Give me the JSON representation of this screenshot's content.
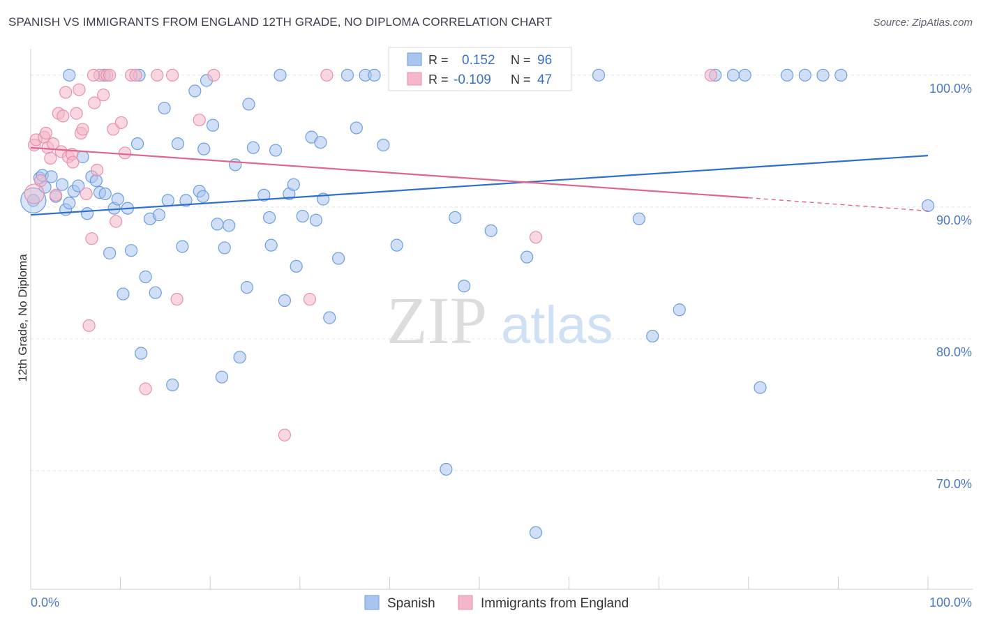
{
  "header": {
    "title": "SPANISH VS IMMIGRANTS FROM ENGLAND 12TH GRADE, NO DIPLOMA CORRELATION CHART",
    "source": "Source: ZipAtlas.com"
  },
  "watermark": {
    "zip": "ZIP",
    "atlas": "atlas"
  },
  "legend": {
    "rows": [
      {
        "r_label": "R =",
        "r_value": "0.152",
        "n_label": "N =",
        "n_value": "96",
        "color": "#a9c5ee"
      },
      {
        "r_label": "R =",
        "r_value": "-0.109",
        "n_label": "N =",
        "n_value": "47",
        "color": "#f4b7c9"
      }
    ]
  },
  "chart_data": {
    "type": "scatter",
    "title": "SPANISH VS IMMIGRANTS FROM ENGLAND 12TH GRADE, NO DIPLOMA CORRELATION CHART",
    "xlabel": "",
    "ylabel": "12th Grade, No Diploma",
    "xlim": [
      0,
      100
    ],
    "ylim": [
      61,
      102
    ],
    "x_tick_labels": [
      "0.0%",
      "100.0%"
    ],
    "y_ticks": [
      {
        "value": 70,
        "label": "70.0%"
      },
      {
        "value": 80,
        "label": "80.0%"
      },
      {
        "value": 90,
        "label": "90.0%"
      },
      {
        "value": 100,
        "label": "100.0%"
      }
    ],
    "grid": true,
    "legend_position": "top-center",
    "series": [
      {
        "name": "Spanish",
        "color": "#6a9ee0",
        "fill": "#a9c5ee",
        "trend": {
          "x": [
            0,
            100
          ],
          "y": [
            89.4,
            93.9
          ],
          "color": "#2f6fcc"
        },
        "points": [
          [
            0.3,
            90.5
          ],
          [
            1.0,
            92.2
          ],
          [
            1.3,
            92.4
          ],
          [
            1.6,
            91.5
          ],
          [
            2.3,
            92.3
          ],
          [
            2.8,
            90.8
          ],
          [
            3.5,
            91.7
          ],
          [
            3.9,
            89.8
          ],
          [
            4.3,
            90.3
          ],
          [
            4.8,
            91.2
          ],
          [
            5.3,
            91.6
          ],
          [
            5.8,
            93.8
          ],
          [
            6.3,
            89.5
          ],
          [
            6.8,
            92.3
          ],
          [
            7.3,
            92.0
          ],
          [
            7.7,
            91.1
          ],
          [
            8.3,
            91.0
          ],
          [
            8.8,
            86.5
          ],
          [
            9.3,
            89.9
          ],
          [
            9.7,
            90.6
          ],
          [
            10.3,
            83.4
          ],
          [
            10.8,
            89.9
          ],
          [
            11.2,
            86.7
          ],
          [
            11.9,
            94.8
          ],
          [
            12.3,
            78.9
          ],
          [
            12.8,
            84.7
          ],
          [
            13.3,
            89.1
          ],
          [
            13.9,
            83.5
          ],
          [
            14.3,
            89.4
          ],
          [
            14.9,
            97.5
          ],
          [
            15.3,
            90.5
          ],
          [
            15.8,
            76.5
          ],
          [
            16.4,
            94.8
          ],
          [
            16.9,
            87.0
          ],
          [
            17.3,
            90.5
          ],
          [
            18.3,
            98.8
          ],
          [
            18.8,
            91.2
          ],
          [
            19.2,
            90.8
          ],
          [
            19.3,
            94.4
          ],
          [
            19.6,
            99.6
          ],
          [
            20.3,
            96.2
          ],
          [
            20.8,
            88.7
          ],
          [
            21.3,
            77.1
          ],
          [
            21.6,
            86.9
          ],
          [
            22.1,
            88.6
          ],
          [
            22.8,
            93.2
          ],
          [
            23.3,
            78.6
          ],
          [
            24.1,
            83.9
          ],
          [
            24.3,
            97.8
          ],
          [
            24.8,
            94.5
          ],
          [
            26.0,
            90.9
          ],
          [
            26.6,
            89.2
          ],
          [
            26.8,
            87.1
          ],
          [
            27.3,
            94.3
          ],
          [
            27.8,
            100.0
          ],
          [
            28.3,
            82.9
          ],
          [
            28.8,
            91.0
          ],
          [
            29.3,
            91.7
          ],
          [
            29.6,
            85.5
          ],
          [
            30.3,
            89.3
          ],
          [
            31.3,
            95.3
          ],
          [
            31.8,
            89.0
          ],
          [
            32.3,
            94.9
          ],
          [
            32.6,
            90.6
          ],
          [
            33.3,
            81.6
          ],
          [
            34.3,
            86.1
          ],
          [
            35.3,
            100.0
          ],
          [
            36.3,
            96.0
          ],
          [
            37.3,
            100.0
          ],
          [
            38.3,
            100.0
          ],
          [
            39.3,
            94.7
          ],
          [
            40.8,
            87.1
          ],
          [
            46.3,
            70.1
          ],
          [
            47.3,
            89.2
          ],
          [
            48.3,
            84.0
          ],
          [
            51.3,
            88.2
          ],
          [
            52.3,
            100.0
          ],
          [
            55.3,
            86.2
          ],
          [
            56.3,
            65.3
          ],
          [
            58.3,
            100.0
          ],
          [
            63.3,
            100.0
          ],
          [
            67.8,
            89.1
          ],
          [
            69.3,
            80.2
          ],
          [
            72.3,
            82.2
          ],
          [
            76.3,
            100.0
          ],
          [
            78.3,
            100.0
          ],
          [
            79.6,
            100.0
          ],
          [
            81.3,
            76.3
          ],
          [
            84.3,
            100.0
          ],
          [
            86.3,
            100.0
          ],
          [
            88.3,
            100.0
          ],
          [
            90.3,
            100.0
          ],
          [
            100.0,
            90.1
          ],
          [
            4.3,
            100.0
          ],
          [
            8.2,
            100.0
          ],
          [
            12.1,
            100.0
          ]
        ]
      },
      {
        "name": "Immigrants from England",
        "color": "#e890ad",
        "fill": "#f4b7c9",
        "trend": {
          "x": [
            0,
            80
          ],
          "y": [
            94.5,
            90.7
          ],
          "x_dashed_end": 100,
          "y_dashed_end": 89.7,
          "color": "#e0648e"
        },
        "points": [
          [
            0.4,
            94.7
          ],
          [
            0.6,
            95.1
          ],
          [
            1.1,
            92.0
          ],
          [
            1.5,
            95.3
          ],
          [
            1.7,
            95.6
          ],
          [
            1.9,
            94.5
          ],
          [
            2.2,
            93.7
          ],
          [
            2.5,
            94.8
          ],
          [
            2.8,
            90.9
          ],
          [
            3.1,
            97.1
          ],
          [
            3.4,
            94.2
          ],
          [
            3.6,
            96.9
          ],
          [
            3.9,
            98.7
          ],
          [
            4.2,
            93.8
          ],
          [
            4.6,
            94.0
          ],
          [
            4.7,
            93.4
          ],
          [
            5.1,
            97.1
          ],
          [
            5.4,
            98.9
          ],
          [
            5.6,
            95.6
          ],
          [
            5.8,
            95.9
          ],
          [
            6.2,
            91.0
          ],
          [
            6.5,
            81.0
          ],
          [
            6.8,
            87.6
          ],
          [
            7.1,
            97.9
          ],
          [
            7.4,
            92.8
          ],
          [
            7.7,
            100.0
          ],
          [
            8.1,
            98.5
          ],
          [
            8.5,
            100.0
          ],
          [
            8.8,
            100.0
          ],
          [
            9.2,
            95.9
          ],
          [
            9.5,
            88.9
          ],
          [
            10.1,
            96.4
          ],
          [
            10.5,
            94.1
          ],
          [
            11.2,
            100.0
          ],
          [
            11.7,
            100.0
          ],
          [
            12.8,
            76.2
          ],
          [
            14.1,
            100.0
          ],
          [
            16.3,
            83.0
          ],
          [
            18.8,
            96.6
          ],
          [
            20.4,
            100.0
          ],
          [
            28.3,
            72.7
          ],
          [
            31.1,
            83.0
          ],
          [
            33.0,
            100.0
          ],
          [
            56.3,
            87.7
          ],
          [
            75.8,
            100.0
          ],
          [
            15.8,
            100.0
          ],
          [
            7.0,
            100.0
          ]
        ]
      }
    ]
  }
}
